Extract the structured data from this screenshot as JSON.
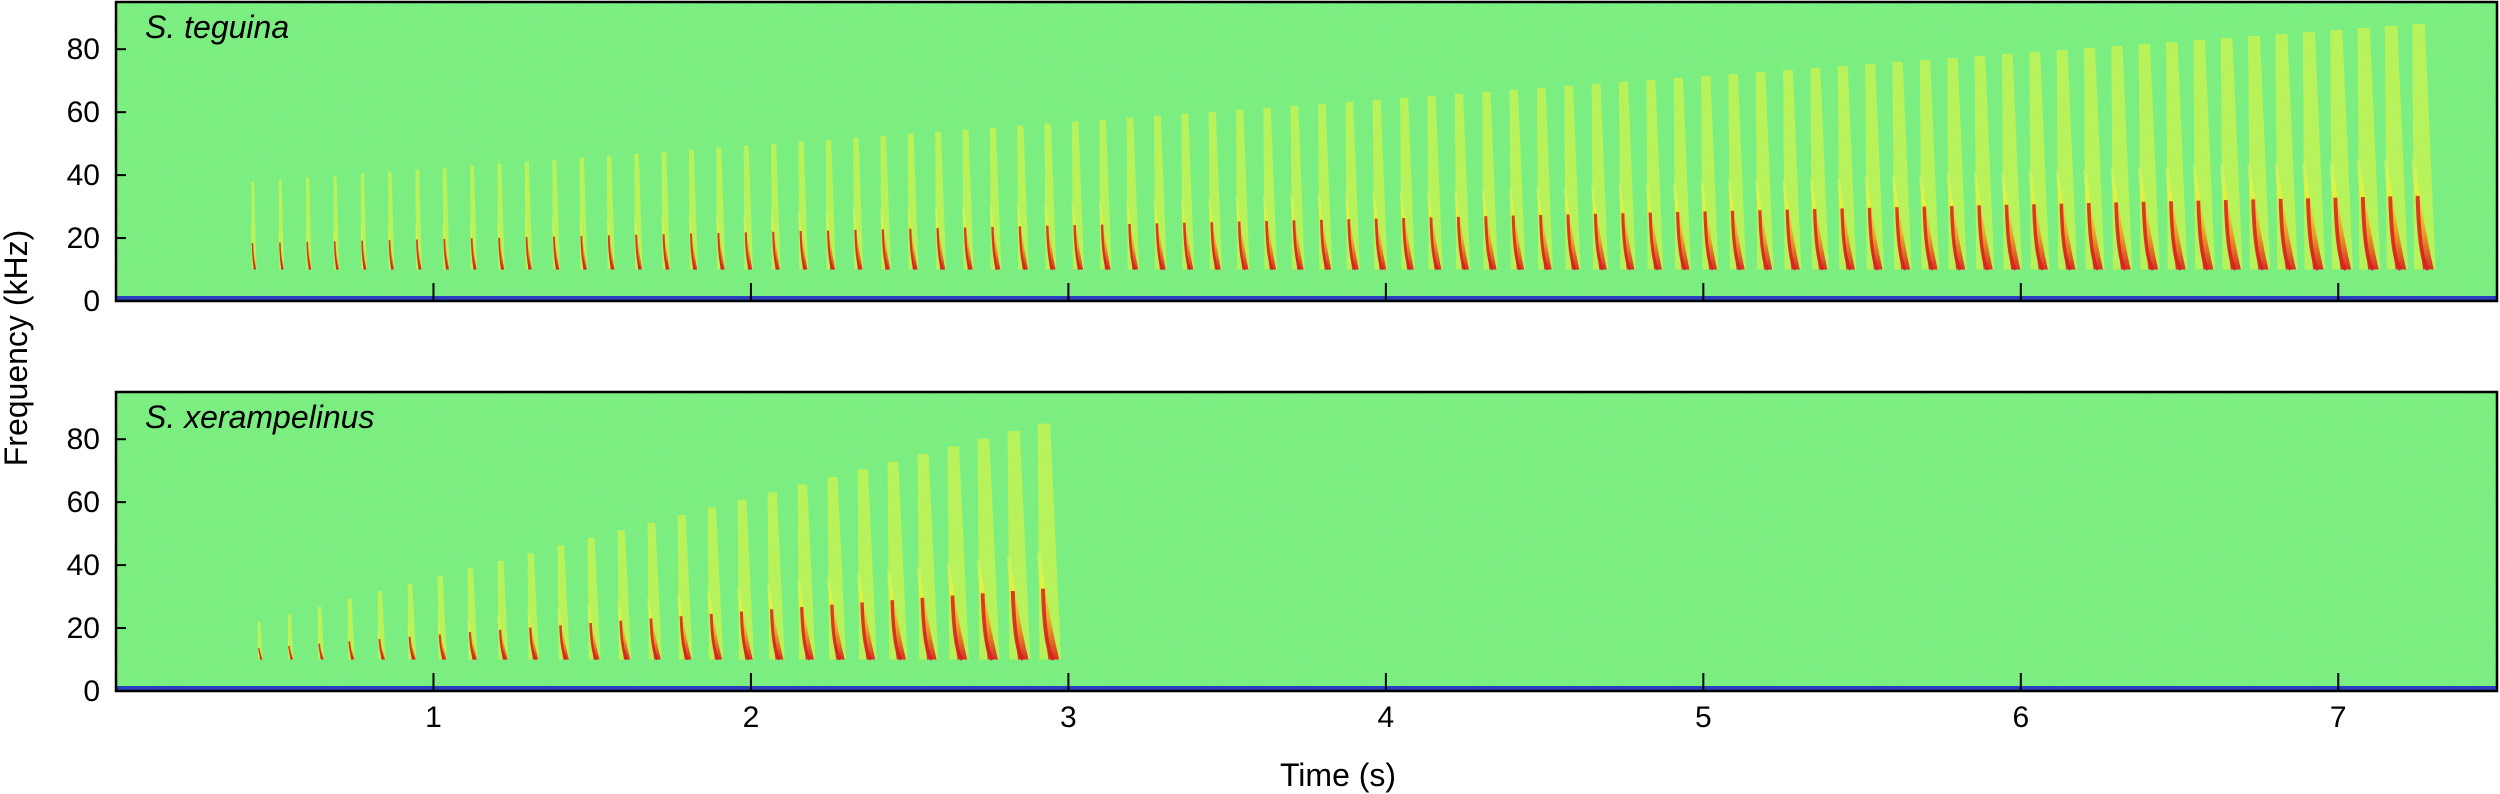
{
  "figure": {
    "ylabel": "Frequency (kHz)",
    "xlabel": "Time (s)"
  },
  "colors": {
    "background": "#7cf07c",
    "noise_floor": "#2a3fbf",
    "call_low": "#e6f53a",
    "call_mid": "#f7b324",
    "call_high": "#d81e1e",
    "frame": "#000000"
  },
  "chart_data": [
    {
      "type": "heatmap",
      "subtype": "spectrogram",
      "label": "S. teguina",
      "x_range": [
        0,
        7.5
      ],
      "y_range": [
        0,
        95
      ],
      "x_ticks": [
        1,
        2,
        3,
        4,
        5,
        6,
        7
      ],
      "y_ticks": [
        0,
        20,
        40,
        60,
        80
      ],
      "notes": {
        "first_note_time": 0.43,
        "last_note_time": 7.25,
        "note_count": 80,
        "start_peak_khz": 38,
        "end_peak_khz": 88,
        "low_end_khz": 10
      }
    },
    {
      "type": "heatmap",
      "subtype": "spectrogram",
      "label": "S. xerampelinus",
      "x_range": [
        0,
        7.5
      ],
      "y_range": [
        0,
        95
      ],
      "x_ticks": [
        1,
        2,
        3,
        4,
        5,
        6,
        7
      ],
      "y_ticks": [
        0,
        20,
        40,
        60,
        80
      ],
      "notes": {
        "first_note_time": 0.45,
        "last_note_time": 2.92,
        "note_count": 27,
        "start_peak_khz": 22,
        "end_peak_khz": 85,
        "low_end_khz": 10
      }
    }
  ]
}
